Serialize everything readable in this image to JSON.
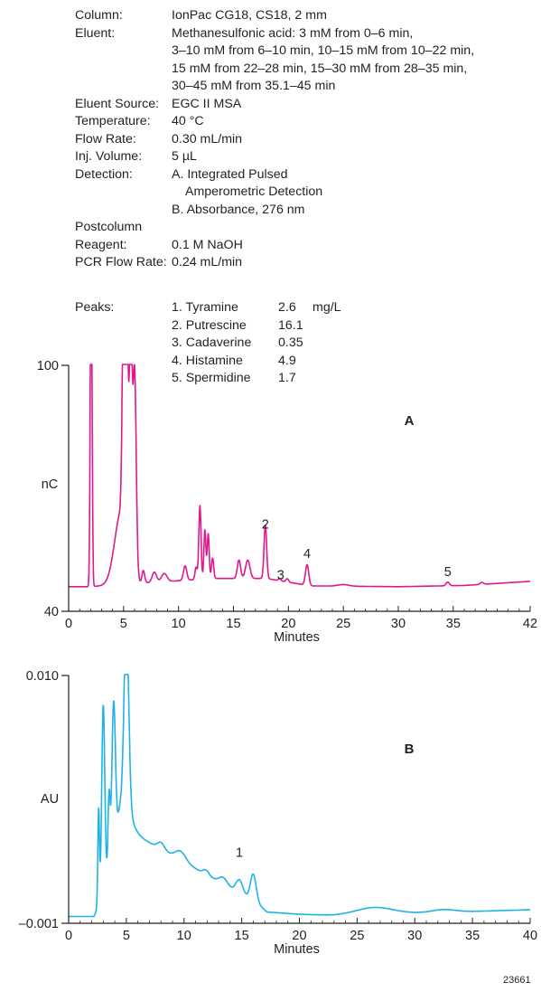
{
  "conditions": [
    {
      "label": "Column:",
      "lines": [
        "IonPac CG18, CS18, 2 mm"
      ]
    },
    {
      "label": "Eluent:",
      "lines": [
        "Methanesulfonic acid: 3 mM from 0–6 min,",
        "3–10 mM from 6–10 min, 10–15 mM from 10–22 min,",
        "15 mM from 22–28 min, 15–30 mM from 28–35 min,",
        "30–45 mM from 35.1–45 min"
      ]
    },
    {
      "label": "Eluent Source:",
      "lines": [
        "EGC II MSA"
      ]
    },
    {
      "label": "Temperature:",
      "lines": [
        "40 °C"
      ]
    },
    {
      "label": "Flow Rate:",
      "lines": [
        "0.30 mL/min"
      ]
    },
    {
      "label": "Inj. Volume:",
      "lines": [
        "5 µL"
      ]
    },
    {
      "label": "Detection:",
      "lines": [
        "A. Integrated Pulsed",
        "    Amperometric Detection",
        "B. Absorbance, 276 nm"
      ]
    },
    {
      "label": "Postcolumn",
      "lines": [
        ""
      ]
    },
    {
      "label": "Reagent:",
      "lines": [
        "0.1 M NaOH"
      ]
    },
    {
      "label": "PCR Flow Rate:",
      "lines": [
        "0.24 mL/min"
      ]
    }
  ],
  "peaks": {
    "label": "Peaks:",
    "unit": "mg/L",
    "items": [
      {
        "name": "1. Tyramine",
        "conc": "2.6"
      },
      {
        "name": "2. Putrescine",
        "conc": "16.1"
      },
      {
        "name": "3. Cadaverine",
        "conc": "0.35"
      },
      {
        "name": "4. Histamine",
        "conc": "4.9"
      },
      {
        "name": "5. Spermidine",
        "conc": "1.7"
      }
    ]
  },
  "figure_id": "23661",
  "chart_data": [
    {
      "type": "line",
      "panel_label": "A",
      "xlabel": "Minutes",
      "ylabel": "nC",
      "xlim": [
        0,
        42
      ],
      "ylim": [
        40,
        100
      ],
      "xticks": [
        0,
        5,
        10,
        15,
        20,
        25,
        30,
        35,
        42
      ],
      "yticks": [
        40,
        100
      ],
      "color": "#e0188c",
      "baseline": 46,
      "peaks": [
        {
          "t": 2.05,
          "h": 90,
          "w": 0.08
        },
        {
          "t": 5.0,
          "h": 55,
          "w": 0.12
        },
        {
          "t": 5.3,
          "h": 57,
          "w": 0.12
        },
        {
          "t": 5.65,
          "h": 58,
          "w": 0.12
        },
        {
          "t": 6.0,
          "h": 50,
          "w": 0.15
        },
        {
          "t": 4.8,
          "h": 18,
          "w": 0.6
        },
        {
          "t": 6.8,
          "h": 3,
          "w": 0.12
        },
        {
          "t": 7.8,
          "h": 2.5,
          "w": 0.2
        },
        {
          "t": 8.7,
          "h": 2,
          "w": 0.25
        },
        {
          "t": 10.6,
          "h": 3.5,
          "w": 0.15
        },
        {
          "t": 11.6,
          "h": 3,
          "w": 0.1
        },
        {
          "t": 11.95,
          "h": 18,
          "w": 0.1
        },
        {
          "t": 12.4,
          "h": 12,
          "w": 0.09
        },
        {
          "t": 12.7,
          "h": 11,
          "w": 0.09
        },
        {
          "t": 13.1,
          "h": 5,
          "w": 0.1
        },
        {
          "t": 15.5,
          "h": 4.5,
          "w": 0.15
        },
        {
          "t": 16.3,
          "h": 4.5,
          "w": 0.2
        },
        {
          "t": 17.9,
          "h": 13,
          "w": 0.12
        },
        {
          "t": 19.2,
          "h": 0.5,
          "w": 0.12
        },
        {
          "t": 19.9,
          "h": 0.8,
          "w": 0.12
        },
        {
          "t": 21.7,
          "h": 5,
          "w": 0.15
        },
        {
          "t": 25,
          "h": 0.4,
          "w": 0.5
        },
        {
          "t": 34.5,
          "h": 0.9,
          "w": 0.15
        },
        {
          "t": 37.6,
          "h": 0.5,
          "w": 0.15
        }
      ],
      "drift": [
        [
          0,
          0
        ],
        [
          1.9,
          0
        ],
        [
          13,
          2
        ],
        [
          18,
          2
        ],
        [
          22,
          0.2
        ],
        [
          30,
          0
        ],
        [
          36,
          0.3
        ],
        [
          42,
          1.3
        ]
      ],
      "peak_labels": [
        {
          "text": "2",
          "x": 17.9,
          "y": 60.2
        },
        {
          "text": "3",
          "x": 19.3,
          "y": 47.8
        },
        {
          "text": "4",
          "x": 21.7,
          "y": 53.0
        },
        {
          "text": "5",
          "x": 34.5,
          "y": 48.6
        }
      ]
    },
    {
      "type": "line",
      "panel_label": "B",
      "xlabel": "Minutes",
      "ylabel": "AU",
      "xlim": [
        0,
        40
      ],
      "ylim": [
        -0.001,
        0.01
      ],
      "xticks": [
        0,
        5,
        10,
        15,
        20,
        25,
        30,
        35,
        40
      ],
      "yticks": [
        -0.001,
        0.01
      ],
      "ytick_labels": [
        "–0.001",
        "0.010"
      ],
      "color": "#1fb3e5",
      "baseline": -0.0007,
      "peaks": [
        {
          "t": 2.6,
          "h": 0.0042,
          "w": 0.07
        },
        {
          "t": 3.0,
          "h": 0.0082,
          "w": 0.13
        },
        {
          "t": 3.5,
          "h": 0.0032,
          "w": 0.09
        },
        {
          "t": 3.9,
          "h": 0.0063,
          "w": 0.15
        },
        {
          "t": 4.45,
          "h": 0.0004,
          "w": 0.15
        },
        {
          "t": 5.0,
          "h": 0.0085,
          "w": 0.2
        },
        {
          "t": 4.5,
          "h": 0.0016,
          "w": 0.7
        },
        {
          "t": 8.0,
          "h": 0.0003,
          "w": 0.3
        },
        {
          "t": 9.7,
          "h": 0.0004,
          "w": 0.45
        },
        {
          "t": 11.9,
          "h": 0.0002,
          "w": 0.25
        },
        {
          "t": 13.4,
          "h": 0.0003,
          "w": 0.35
        },
        {
          "t": 14.8,
          "h": 0.0006,
          "w": 0.3
        },
        {
          "t": 16.0,
          "h": 0.0012,
          "w": 0.25
        },
        {
          "t": 26.5,
          "h": 0.0003,
          "w": 1.6
        },
        {
          "t": 32.5,
          "h": 0.00012,
          "w": 1.0
        }
      ],
      "drift": [
        [
          0,
          0
        ],
        [
          2.2,
          0
        ],
        [
          5.2,
          0.0038
        ],
        [
          16.3,
          0.0006
        ],
        [
          17.2,
          0.0002
        ],
        [
          20,
          0.0001
        ],
        [
          23,
          5e-05
        ],
        [
          40,
          0.0003
        ]
      ],
      "peak_labels": [
        {
          "text": "1",
          "x": 14.8,
          "y": 0.00195
        }
      ]
    }
  ]
}
